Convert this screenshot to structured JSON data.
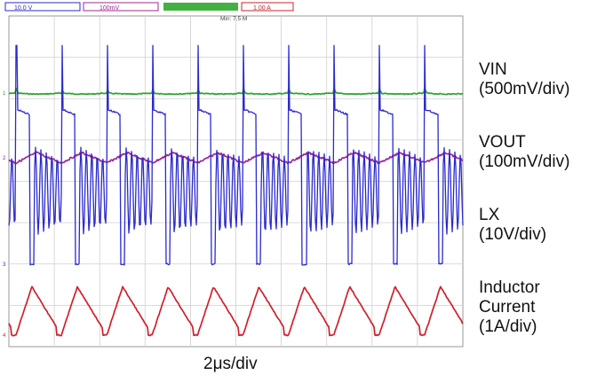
{
  "chart_data": {
    "type": "line",
    "title": "",
    "header": {
      "ch1_setting": "10.0 V",
      "ch2_setting": "100mV",
      "ch3_setting": "1.00 A",
      "timebase": "Min: 7.5 M"
    },
    "xlabel": "2μs/div",
    "grid": true,
    "divisions": {
      "x": 10,
      "y": 8
    },
    "time_per_div_us": 2,
    "series": [
      {
        "name": "VIN",
        "lines": [
          "VIN",
          "(500mV/div)"
        ],
        "color": "#2aa52a",
        "shape": "flat",
        "ripple_div": 0.06
      },
      {
        "name": "VOUT",
        "lines": [
          "VOUT",
          "(100mV/div)"
        ],
        "color": "#a0259a",
        "shape": "sawtooth",
        "ripple_div": 0.25
      },
      {
        "name": "LX",
        "lines": [
          "LX",
          "(10V/div)"
        ],
        "color": "#2a2ad0",
        "shape": "switching",
        "swing_div": 1.4
      },
      {
        "name": "Inductor Current",
        "lines": [
          "Inductor",
          "Current",
          "(1A/div)"
        ],
        "color": "#d0202a",
        "shape": "triangle",
        "peak_div": 0.45
      }
    ],
    "period_div": 1.0
  }
}
